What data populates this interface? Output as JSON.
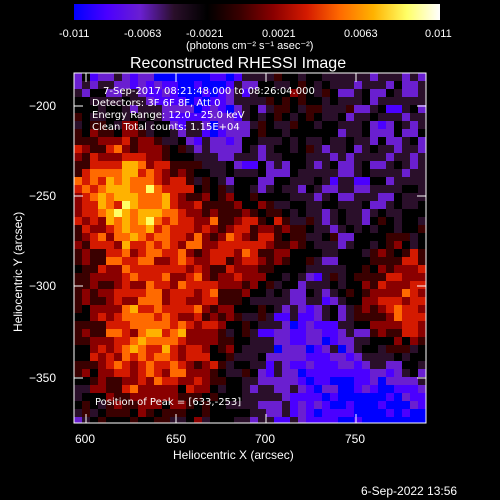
{
  "colorbar": {
    "min_label": "-0.011",
    "ticks": [
      "-0.0063",
      "-0.0021",
      "0.0021",
      "0.0063"
    ],
    "max_label": "0.011",
    "unit": "(photons cm⁻² s⁻¹ asec⁻²)",
    "colors": [
      "#0000ff",
      "#4b00ff",
      "#6a1fd0",
      "#2a0f2a",
      "#000000",
      "#3a0000",
      "#8a0000",
      "#d41a00",
      "#ff6a00",
      "#ffb200",
      "#ffff66",
      "#ffffff"
    ]
  },
  "image": {
    "title": "Reconstructed RHESSI Image",
    "header_lines": [
      "7-Sep-2017 08:21:48.000 to 08:26:04.000",
      "Detectors: 3F 6F 8F, Att 0",
      "Energy Range: 12.0 - 25.0 keV",
      "Clean     Total counts: 1.15E+04"
    ],
    "peak_label": "Position of Peak = [633,-253]",
    "x_label": "Heliocentric X (arcsec)",
    "y_label": "Heliocentric Y (arcsec)",
    "x_ticks": [
      "600",
      "650",
      "700",
      "750"
    ],
    "y_ticks": [
      "−200",
      "−250",
      "−300",
      "−350"
    ]
  },
  "footer": {
    "timestamp": "6-Sep-2022 13:56"
  }
}
